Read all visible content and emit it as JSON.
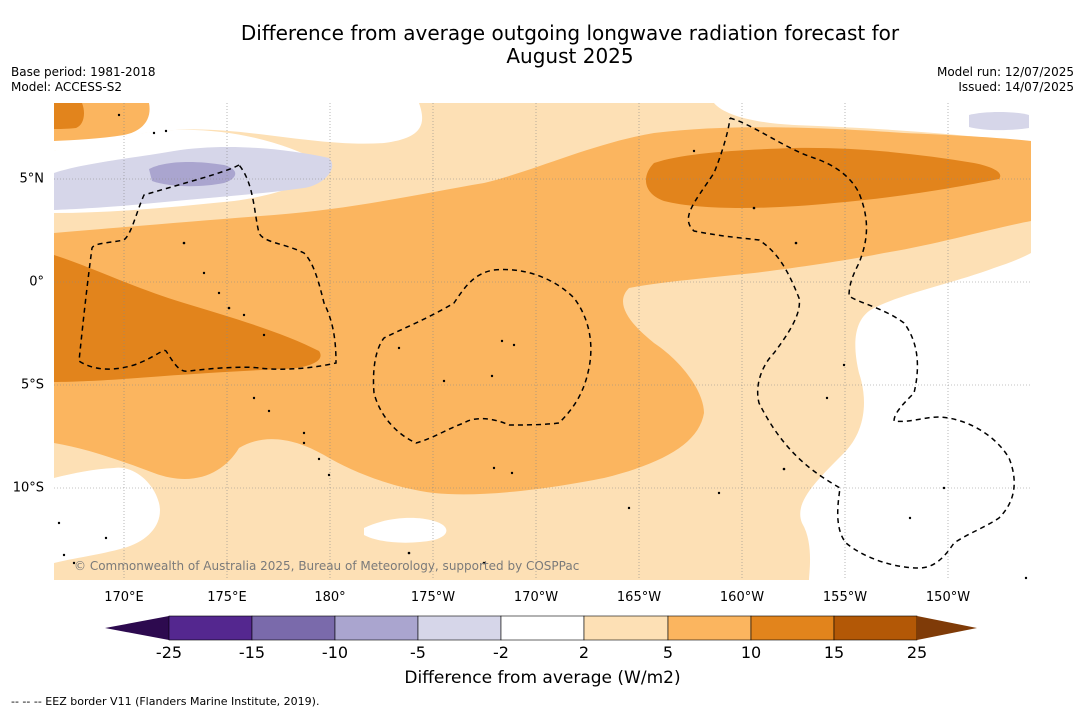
{
  "title_line1": "Difference from average outgoing longwave radiation forecast for",
  "title_line2": "August 2025",
  "base_period": "Base period: 1981-2018",
  "model": "Model: ACCESS-S2",
  "model_run": "Model run: 12/07/2025",
  "issued": "Issued: 14/07/2025",
  "lat_labels": [
    "5°N",
    "0°",
    "5°S",
    "10°S"
  ],
  "lon_labels": [
    "170°E",
    "175°E",
    "180°",
    "175°W",
    "170°W",
    "165°W",
    "160°W",
    "155°W",
    "150°W"
  ],
  "credit": "© Commonwealth of Australia 2025, Bureau of Meteorology, supported by COSPPac",
  "colorbar": {
    "ticks": [
      "-25",
      "-15",
      "-10",
      "-5",
      "-2",
      "2",
      "5",
      "10",
      "15",
      "25"
    ],
    "colors": {
      "below_min": "#2d0a4f",
      "c_m25_m15": "#54278f",
      "c_m15_m10": "#7a6aab",
      "c_m10_m5": "#aaa5cf",
      "c_m5_m2": "#d6d6e9",
      "c_m2_2": "#ffffff",
      "c_2_5": "#fde0b5",
      "c_5_10": "#fbb55f",
      "c_10_15": "#e2841c",
      "c_15_25": "#b35806",
      "above_max": "#7f3b08"
    },
    "label": "Difference from average (W/m2)"
  },
  "legend_text": "--  --  -- EEZ border V11 (Flanders Marine Institute, 2019)."
}
